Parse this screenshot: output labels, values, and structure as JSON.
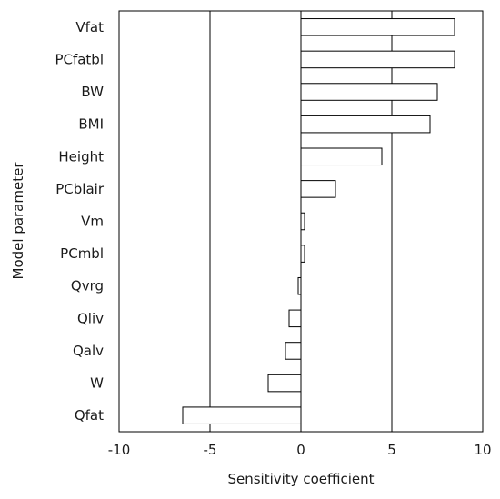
{
  "chart_data": {
    "type": "bar",
    "orientation": "horizontal",
    "xlabel": "Sensitivity coefficient",
    "ylabel": "Model parameter",
    "xlim": [
      -10,
      10
    ],
    "xticks": [
      -10,
      -5,
      0,
      5,
      10
    ],
    "vertical_gridlines_at": [
      -5,
      0,
      5
    ],
    "categories": [
      "Vfat",
      "PCfatbl",
      "BW",
      "BMI",
      "Height",
      "PCblair",
      "Vm",
      "PCmbl",
      "Qvrg",
      "Qliv",
      "Qalv",
      "W",
      "Qfat"
    ],
    "values": [
      8.45,
      8.45,
      7.5,
      7.1,
      4.45,
      1.9,
      0.2,
      0.2,
      -0.15,
      -0.65,
      -0.85,
      -1.8,
      -6.5
    ],
    "bar_fill": "#ffffff",
    "bar_stroke": "#000000",
    "grid": false,
    "legend": "none"
  }
}
